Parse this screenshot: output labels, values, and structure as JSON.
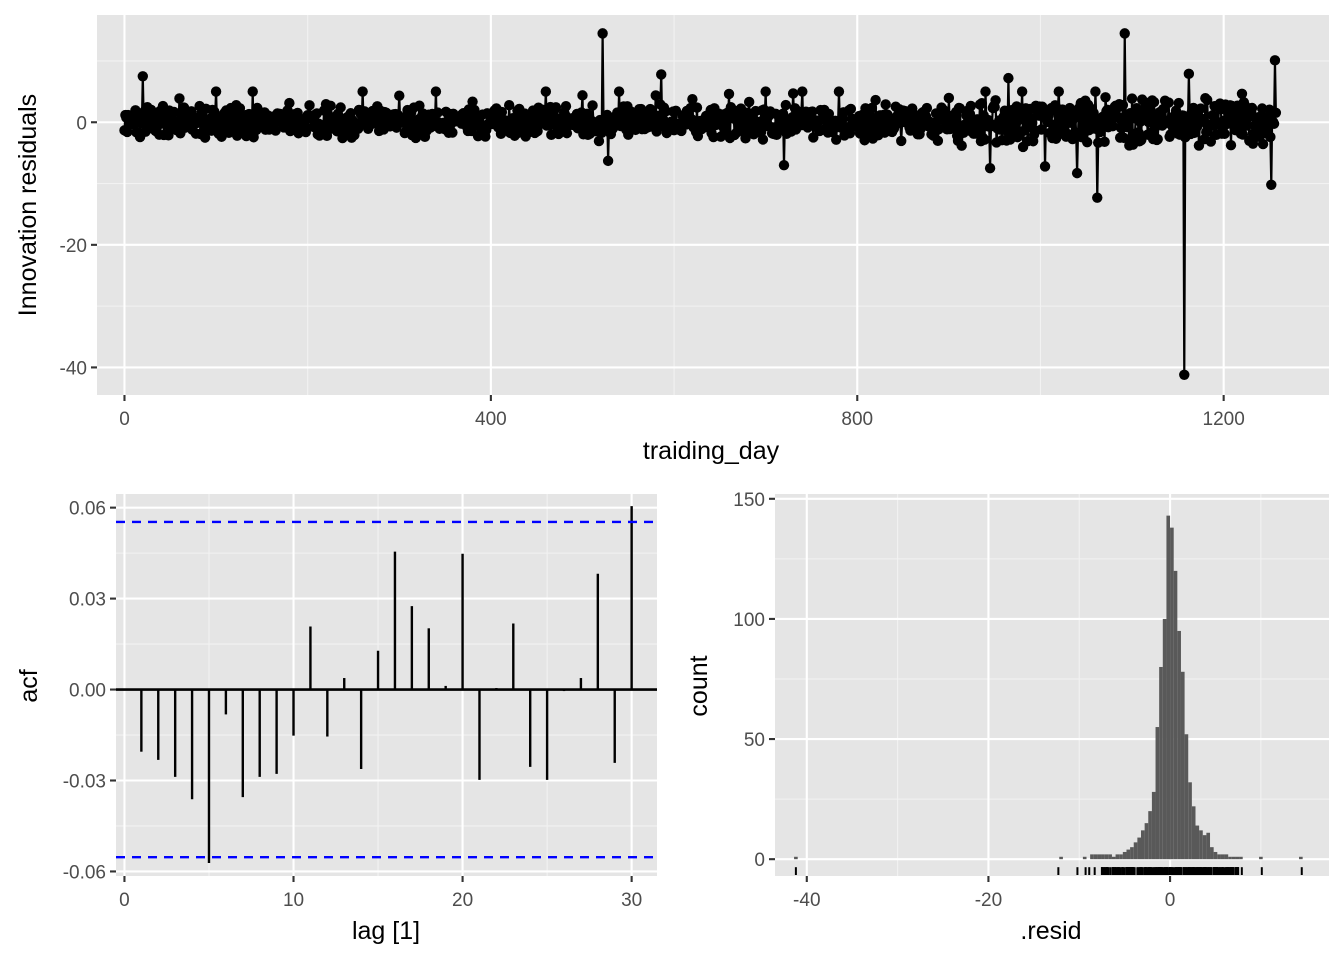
{
  "chart_data": [
    {
      "type": "line",
      "xlabel": "traiding_day",
      "ylabel": "Innovation residuals",
      "xlim": [
        -30,
        1315
      ],
      "ylim": [
        -44.5,
        17.5
      ],
      "x_ticks": [
        0,
        400,
        800,
        1200
      ],
      "x_tick_labels": [
        "0",
        "400",
        "800",
        "1200"
      ],
      "y_ticks": [
        0,
        -20,
        -40
      ],
      "y_tick_labels": [
        "0",
        "-20",
        "-40"
      ],
      "grid": true,
      "n_points": 1258,
      "notable_points": [
        {
          "x": 20,
          "y": 7.5
        },
        {
          "x": 522,
          "y": 14.5
        },
        {
          "x": 528,
          "y": -6.3
        },
        {
          "x": 586,
          "y": 7.8
        },
        {
          "x": 720,
          "y": -7.0
        },
        {
          "x": 730,
          "y": 4.7
        },
        {
          "x": 945,
          "y": -7.5
        },
        {
          "x": 965,
          "y": 7.2
        },
        {
          "x": 1005,
          "y": -7.2
        },
        {
          "x": 1040,
          "y": -8.3
        },
        {
          "x": 1062,
          "y": -12.3
        },
        {
          "x": 1092,
          "y": 14.5
        },
        {
          "x": 1157,
          "y": -41.2
        },
        {
          "x": 1162,
          "y": 7.9
        },
        {
          "x": 1252,
          "y": -10.2
        },
        {
          "x": 1256,
          "y": 10.1
        }
      ],
      "series": [
        {
          "values": [
            0.5,
            -0.3,
            2.6,
            -1.2,
            0.8,
            -0.7,
            1.4,
            -0.2,
            -2.1,
            1.1,
            0.3,
            -0.9,
            1.7,
            -1.5,
            0.6,
            -0.4,
            1.2,
            -1.8,
            0.9,
            -0.1,
            7.5,
            -2.3,
            1.5,
            -0.6,
            0.4,
            2.0,
            -1.4,
            0.2,
            -0.8,
            1.3,
            -0.5,
            2.4,
            -1.1,
            0.7,
            -1.6,
            0.1,
            1.9,
            -0.3,
            -2.5,
            0.8
          ]
        }
      ]
    },
    {
      "type": "bar",
      "xlabel": "lag [1]",
      "ylabel": "acf",
      "xlim": [
        -0.5,
        31.5
      ],
      "ylim": [
        -0.0615,
        0.0645
      ],
      "x_ticks": [
        0,
        10,
        20,
        30
      ],
      "x_tick_labels": [
        "0",
        "10",
        "20",
        "30"
      ],
      "y_ticks": [
        0.06,
        0.03,
        0.0,
        -0.03,
        -0.06
      ],
      "y_tick_labels": [
        "0.06",
        "0.03",
        "0.00",
        "-0.03",
        "-0.06"
      ],
      "lags": [
        1,
        2,
        3,
        4,
        5,
        6,
        7,
        8,
        9,
        10,
        11,
        12,
        13,
        14,
        15,
        16,
        17,
        18,
        19,
        20,
        21,
        22,
        23,
        24,
        25,
        26,
        27,
        28,
        29,
        30
      ],
      "values": [
        -0.0205,
        -0.0232,
        -0.0288,
        -0.0362,
        -0.0572,
        -0.0082,
        -0.0355,
        -0.0288,
        -0.0278,
        -0.0152,
        0.0208,
        -0.0155,
        0.0038,
        -0.0262,
        0.0128,
        0.0455,
        0.0275,
        0.0202,
        0.0012,
        0.0448,
        -0.0298,
        0.0005,
        0.0218,
        -0.0255,
        -0.0298,
        -0.0005,
        0.0038,
        0.0382,
        -0.0242,
        0.0605
      ],
      "confidence_bound": 0.0553,
      "grid": true
    },
    {
      "type": "bar",
      "xlabel": ".resid",
      "ylabel": "count",
      "xlim": [
        -43.5,
        17.5
      ],
      "ylim": [
        -7,
        152
      ],
      "x_ticks": [
        -40,
        -20,
        0
      ],
      "x_tick_labels": [
        "-40",
        "-20",
        "0"
      ],
      "y_ticks": [
        0,
        50,
        100,
        150
      ],
      "y_tick_labels": [
        "0",
        "50",
        "100",
        "150"
      ],
      "bin_width": 0.4,
      "bins": [
        {
          "x": -12.0,
          "count": 1
        },
        {
          "x": -9.4,
          "count": 1
        },
        {
          "x": -8.6,
          "count": 2
        },
        {
          "x": -8.2,
          "count": 2
        },
        {
          "x": -7.8,
          "count": 2
        },
        {
          "x": -7.4,
          "count": 2
        },
        {
          "x": -7.0,
          "count": 2
        },
        {
          "x": -6.6,
          "count": 2
        },
        {
          "x": -6.2,
          "count": 1
        },
        {
          "x": -5.8,
          "count": 2
        },
        {
          "x": -5.4,
          "count": 2
        },
        {
          "x": -5.0,
          "count": 3
        },
        {
          "x": -4.6,
          "count": 4
        },
        {
          "x": -4.2,
          "count": 5
        },
        {
          "x": -3.8,
          "count": 7
        },
        {
          "x": -3.4,
          "count": 9
        },
        {
          "x": -3.0,
          "count": 12
        },
        {
          "x": -2.6,
          "count": 15
        },
        {
          "x": -2.2,
          "count": 20
        },
        {
          "x": -1.8,
          "count": 28
        },
        {
          "x": -1.4,
          "count": 55
        },
        {
          "x": -1.0,
          "count": 80
        },
        {
          "x": -0.6,
          "count": 100
        },
        {
          "x": -0.2,
          "count": 143
        },
        {
          "x": 0.2,
          "count": 138
        },
        {
          "x": 0.6,
          "count": 120
        },
        {
          "x": 1.0,
          "count": 95
        },
        {
          "x": 1.4,
          "count": 78
        },
        {
          "x": 1.8,
          "count": 52
        },
        {
          "x": 2.2,
          "count": 32
        },
        {
          "x": 2.6,
          "count": 22
        },
        {
          "x": 3.0,
          "count": 14
        },
        {
          "x": 3.4,
          "count": 12
        },
        {
          "x": 3.8,
          "count": 10
        },
        {
          "x": 4.2,
          "count": 11
        },
        {
          "x": 4.6,
          "count": 5
        },
        {
          "x": 5.0,
          "count": 3
        },
        {
          "x": 5.4,
          "count": 2
        },
        {
          "x": 5.8,
          "count": 2
        },
        {
          "x": 6.2,
          "count": 2
        },
        {
          "x": 6.6,
          "count": 1
        },
        {
          "x": 7.0,
          "count": 1
        },
        {
          "x": 7.4,
          "count": 1
        },
        {
          "x": 7.8,
          "count": 1
        },
        {
          "x": 10.0,
          "count": 1
        },
        {
          "x": 14.4,
          "count": 1
        },
        {
          "x": -41.2,
          "count": 1
        }
      ],
      "rug": [
        -41.2,
        -12.3,
        -10.2,
        -9.3,
        -8.9,
        -8.3,
        -7.5,
        -7.2,
        -7.0,
        -6.8,
        -6.3,
        -6.0,
        -5.5,
        -5.2,
        -4.8,
        -4.5,
        -4.2,
        -3.9,
        -3.6,
        -3.3,
        -3.0,
        -2.7,
        -2.4,
        -2.1,
        -1.8,
        -1.5,
        -1.2,
        -0.9,
        -0.6,
        -0.3,
        0.0,
        0.3,
        0.6,
        0.9,
        1.2,
        1.5,
        1.8,
        2.1,
        2.4,
        2.7,
        3.0,
        3.3,
        3.6,
        3.9,
        4.2,
        4.5,
        4.8,
        5.1,
        5.5,
        5.8,
        6.2,
        6.6,
        7.0,
        7.5,
        7.9,
        10.1,
        14.5
      ],
      "grid": true
    }
  ]
}
